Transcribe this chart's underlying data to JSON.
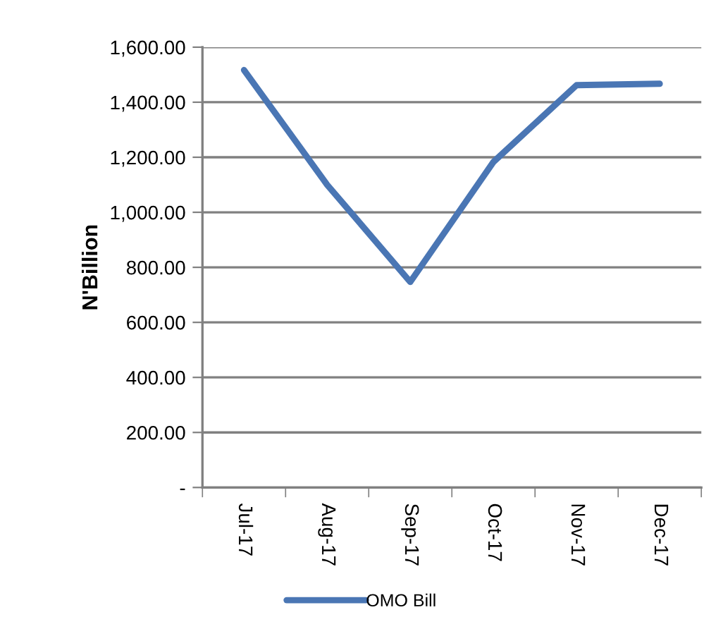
{
  "chart_data": {
    "type": "line",
    "ylabel": "N'Billion",
    "categories": [
      "Jul-17",
      "Aug-17",
      "Sep-17",
      "Oct-17",
      "Nov-17",
      "Dec-17"
    ],
    "series": [
      {
        "name": "OMO Bill",
        "color": "#4a76b4",
        "values": [
          1517,
          1100,
          747,
          1183,
          1462,
          1467
        ]
      }
    ],
    "ylim": [
      0,
      1600
    ],
    "yticks": [
      {
        "value": 0,
        "label": "-"
      },
      {
        "value": 200,
        "label": "200.00"
      },
      {
        "value": 400,
        "label": "400.00"
      },
      {
        "value": 600,
        "label": "600.00"
      },
      {
        "value": 800,
        "label": "800.00"
      },
      {
        "value": 1000,
        "label": "1,000.00"
      },
      {
        "value": 1200,
        "label": "1,200.00"
      },
      {
        "value": 1400,
        "label": "1,400.00"
      },
      {
        "value": 1600,
        "label": "1,600.00"
      }
    ],
    "grid": "y",
    "legend": "bottom",
    "marker": "none",
    "line_style": "solid"
  }
}
